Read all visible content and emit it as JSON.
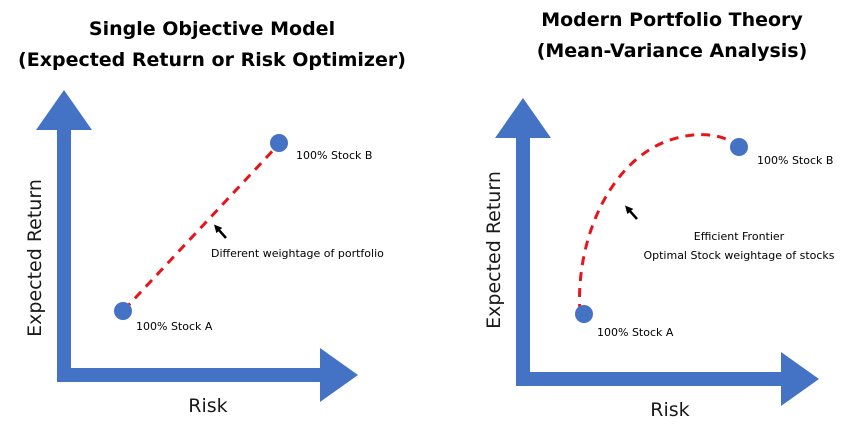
{
  "left_panel": {
    "title_line1": "Single Objective Model",
    "title_line2": "(Expected Return or Risk Optimizer)",
    "y_axis_label": "Expected Return",
    "x_axis_label": "Risk",
    "point_a_label": "100% Stock A",
    "point_b_label": "100% Stock B",
    "annotation": "Different weightage of portfolio"
  },
  "right_panel": {
    "title_line1": "Modern Portfolio Theory",
    "title_line2": "(Mean-Variance Analysis)",
    "y_axis_label": "Expected Return",
    "x_axis_label": "Risk",
    "point_a_label": "100% Stock A",
    "point_b_label": "100% Stock B",
    "annotation_line1": "Efficient Frontier",
    "annotation_line2": "Optimal Stock weightage of stocks"
  },
  "colors": {
    "axis": "#4472C4",
    "point": "#4472C4",
    "line": "#E8141B",
    "text": "#000000"
  }
}
